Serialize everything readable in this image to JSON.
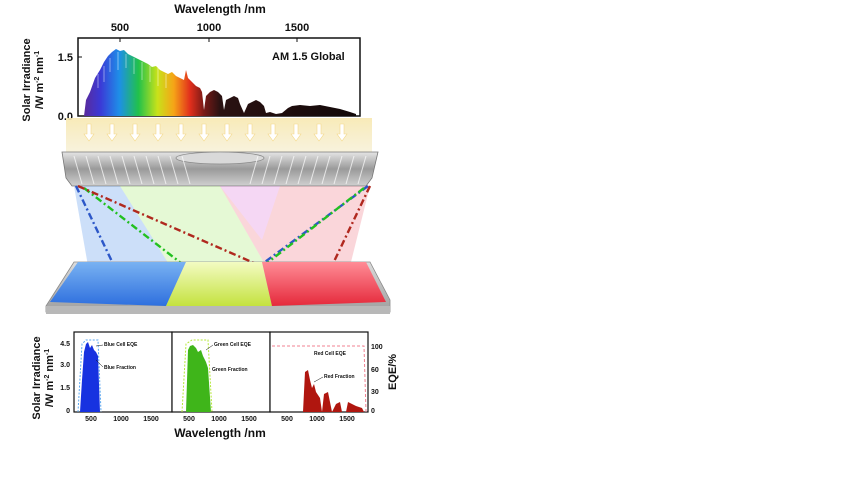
{
  "top_chart": {
    "x_axis_title": "Wavelength /nm",
    "y_axis_title_line1": "Solar Irradiance",
    "y_axis_title_line2": "/W m",
    "y_axis_title_sup": "-2",
    "y_axis_title_tail": " nm",
    "y_axis_title_sup2": "-1",
    "x_ticks": [
      "500",
      "1000",
      "1500"
    ],
    "y_ticks": [
      "0.0",
      "1.5"
    ],
    "legend": "AM 1.5 Global"
  },
  "bottom_chart": {
    "x_axis_title": "Wavelength /nm",
    "y_axis_title_line1": "Solar Irradiance",
    "y_axis_title_line2": "/W m",
    "y_axis_title_sup": "-2",
    "y_axis_title_tail": " nm",
    "y_axis_title_sup2": "-1",
    "y_ticks_left": [
      "0",
      "1.5",
      "3.0",
      "4.5"
    ],
    "x_ticks": [
      "500",
      "1000",
      "1500"
    ],
    "right_axis_title": "EQE/%",
    "y_ticks_right": [
      "0",
      "30",
      "60",
      "100"
    ],
    "panels": {
      "blue": {
        "eqe_label": "Blue Cell EQE",
        "fraction_label": "Blue Fraction"
      },
      "green": {
        "eqe_label": "Green Cell EQE",
        "fraction_label": "Green Fraction"
      },
      "red": {
        "eqe_label": "Red Cell EQE",
        "fraction_label": "Red Fraction"
      }
    }
  },
  "colors": {
    "blue_beam": "#2c57c8",
    "green_beam": "#22c020",
    "red_beam": "#b0281e",
    "blue_cell": "#3d86ea",
    "green_cell": "#d8f06a",
    "red_cell": "#ee3f55",
    "blue_fill": "#1732e0",
    "green_fill": "#3fb51a",
    "red_fill": "#b0160f",
    "arrow": "#ffffff",
    "light_band": "#f7e6a8"
  },
  "icons": {
    "concentrator_lens": "fresnel-lens-icon",
    "arrows": "down-arrow-icon"
  }
}
